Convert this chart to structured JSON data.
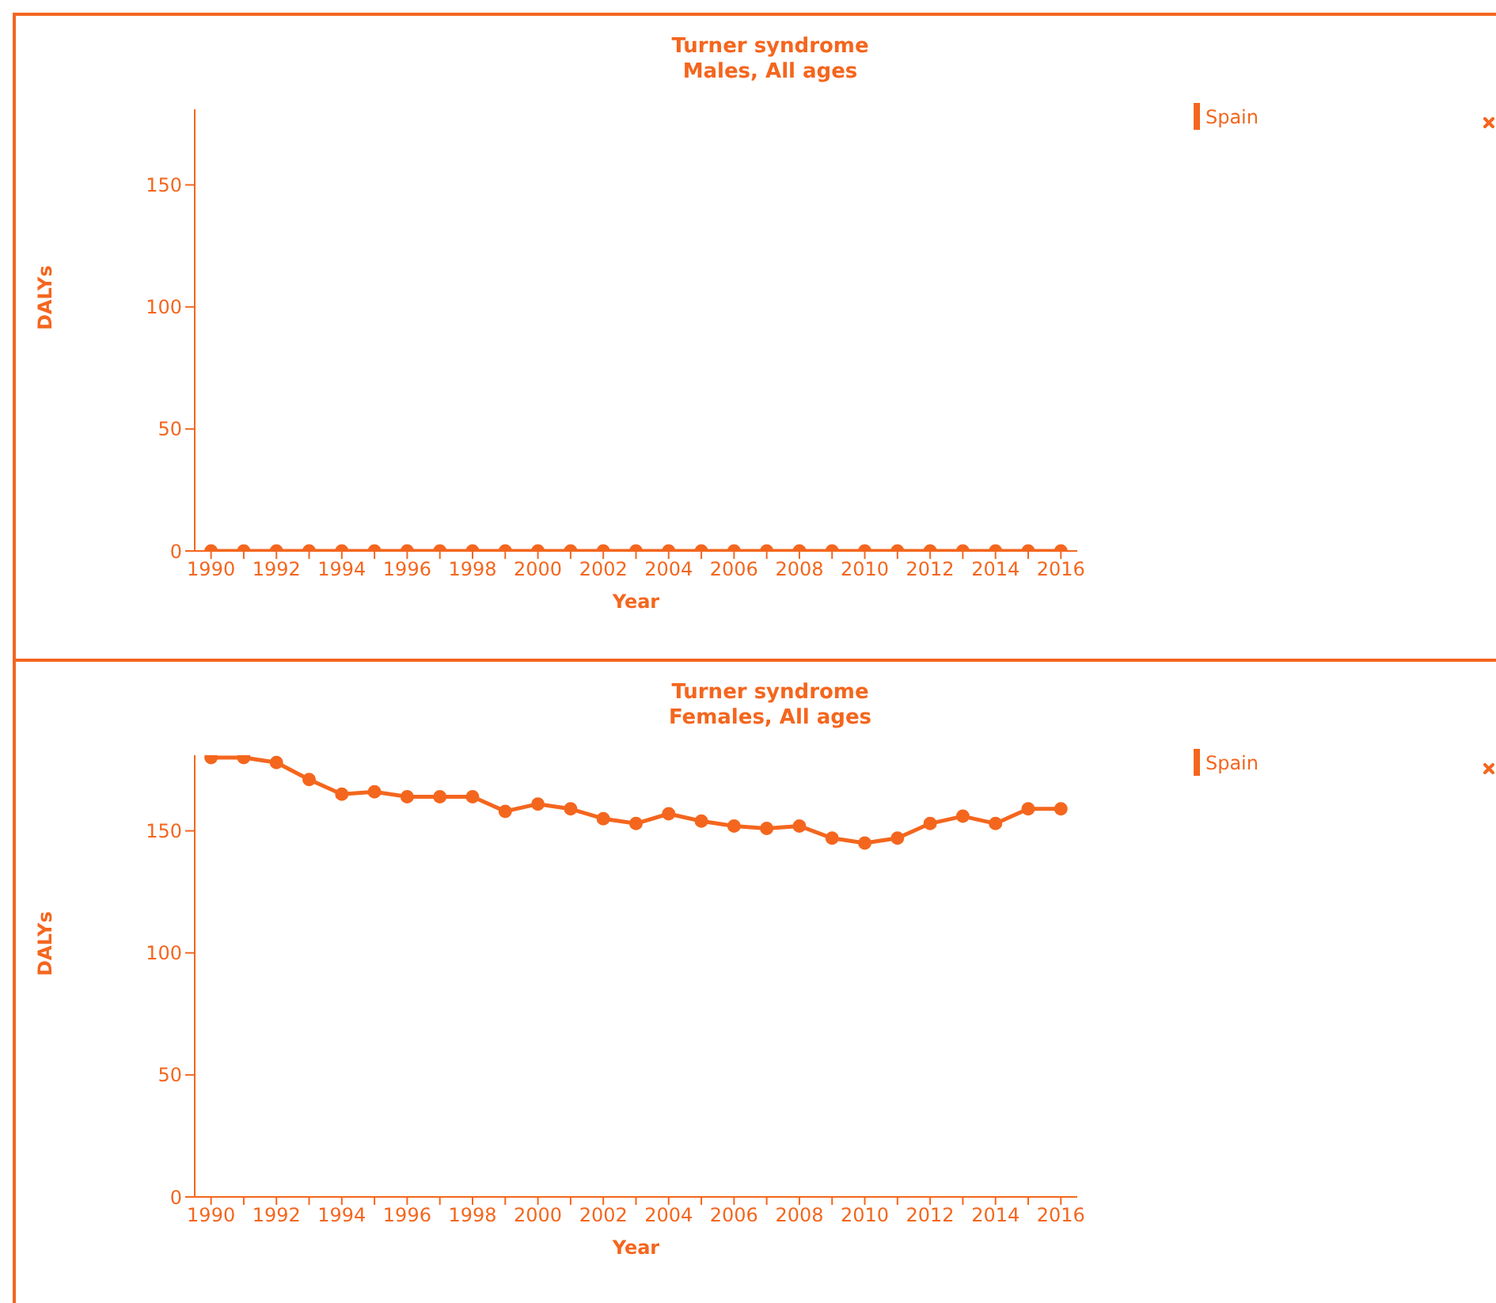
{
  "chart_data": [
    {
      "type": "line",
      "title": "Turner syndrome",
      "subtitle": "Males, All ages",
      "xlabel": "Year",
      "ylabel": "DALYs",
      "x": [
        1990,
        1991,
        1992,
        1993,
        1994,
        1995,
        1996,
        1997,
        1998,
        1999,
        2000,
        2001,
        2002,
        2003,
        2004,
        2005,
        2006,
        2007,
        2008,
        2009,
        2010,
        2011,
        2012,
        2013,
        2014,
        2015,
        2016
      ],
      "series": [
        {
          "name": "Spain",
          "color": "#f4661e",
          "values": [
            0,
            0,
            0,
            0,
            0,
            0,
            0,
            0,
            0,
            0,
            0,
            0,
            0,
            0,
            0,
            0,
            0,
            0,
            0,
            0,
            0,
            0,
            0,
            0,
            0,
            0,
            0
          ]
        }
      ],
      "xlim": [
        1989.5,
        2016.5
      ],
      "xticks": [
        1990,
        {
          "value": 1991,
          "label": null
        },
        1992,
        {
          "value": 1993,
          "label": null
        },
        1994,
        {
          "value": 1995,
          "label": null
        },
        1996,
        {
          "value": 1997,
          "label": null
        },
        1998,
        {
          "value": 1999,
          "label": null
        },
        2000,
        {
          "value": 2001,
          "label": null
        },
        2002,
        {
          "value": 2003,
          "label": null
        },
        2004,
        {
          "value": 2005,
          "label": null
        },
        2006,
        {
          "value": 2007,
          "label": null
        },
        2008,
        {
          "value": 2009,
          "label": null
        },
        2010,
        {
          "value": 2011,
          "label": null
        },
        2012,
        {
          "value": 2013,
          "label": null
        },
        2014,
        {
          "value": 2015,
          "label": null
        },
        2016
      ],
      "ylim": [
        0,
        181
      ],
      "yticks": [
        0,
        50,
        100,
        150
      ],
      "legend": "top right",
      "marker": "circle"
    },
    {
      "type": "line",
      "title": "Turner syndrome",
      "subtitle": "Females, All ages",
      "xlabel": "Year",
      "ylabel": "DALYs",
      "x": [
        1990,
        1991,
        1992,
        1993,
        1994,
        1995,
        1996,
        1997,
        1998,
        1999,
        2000,
        2001,
        2002,
        2003,
        2004,
        2005,
        2006,
        2007,
        2008,
        2009,
        2010,
        2011,
        2012,
        2013,
        2014,
        2015,
        2016
      ],
      "series": [
        {
          "name": "Spain",
          "color": "#f4661e",
          "values": [
            180,
            180,
            178,
            171,
            165,
            166,
            164,
            164,
            164,
            158,
            161,
            159,
            155,
            153,
            157,
            154,
            152,
            151,
            152,
            147,
            145,
            147,
            153,
            156,
            153,
            159,
            159
          ]
        }
      ],
      "xlim": [
        1989.5,
        2016.5
      ],
      "xticks": [
        1990,
        {
          "value": 1991,
          "label": null
        },
        1992,
        {
          "value": 1993,
          "label": null
        },
        1994,
        {
          "value": 1995,
          "label": null
        },
        1996,
        {
          "value": 1997,
          "label": null
        },
        1998,
        {
          "value": 1999,
          "label": null
        },
        2000,
        {
          "value": 2001,
          "label": null
        },
        2002,
        {
          "value": 2003,
          "label": null
        },
        2004,
        {
          "value": 2005,
          "label": null
        },
        2006,
        {
          "value": 2007,
          "label": null
        },
        2008,
        {
          "value": 2009,
          "label": null
        },
        2010,
        {
          "value": 2011,
          "label": null
        },
        2012,
        {
          "value": 2013,
          "label": null
        },
        2014,
        {
          "value": 2015,
          "label": null
        },
        2016
      ],
      "ylim": [
        0,
        181
      ],
      "yticks": [
        0,
        50,
        100,
        150
      ],
      "legend": "top right",
      "marker": "circle"
    }
  ]
}
